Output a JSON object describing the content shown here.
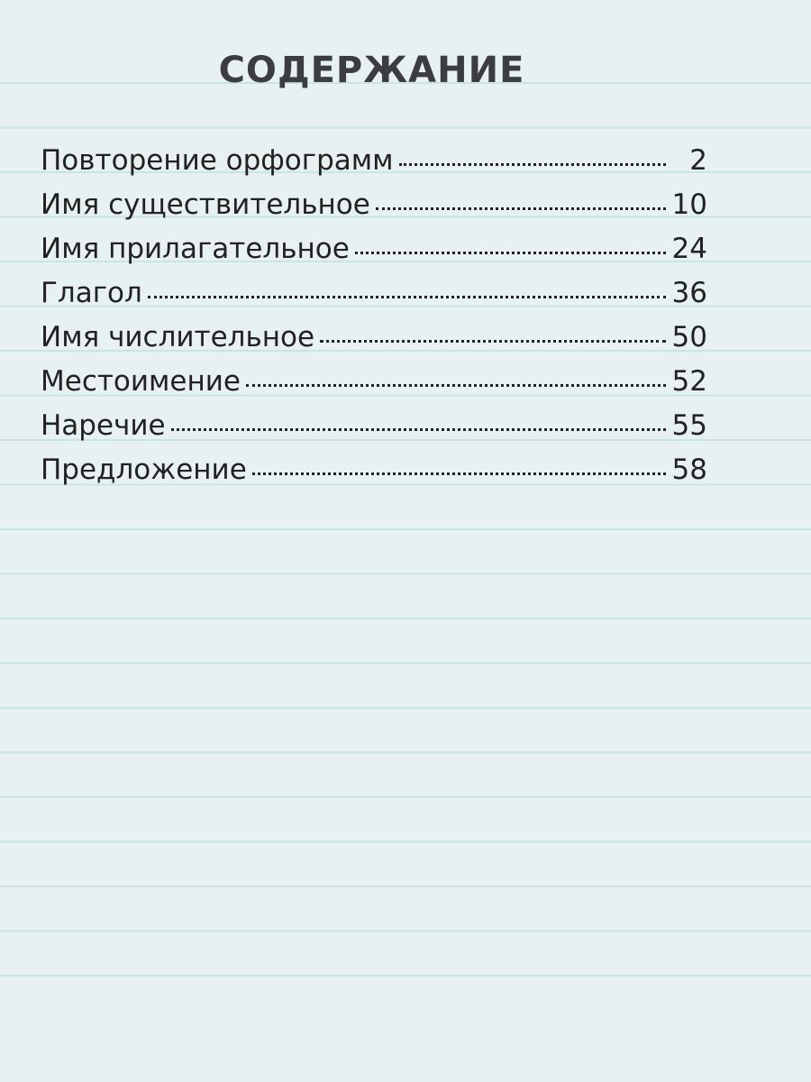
{
  "header": {
    "title": "СОДЕРЖАНИЕ"
  },
  "toc": {
    "entries": [
      {
        "label": "Повторение орфограмм",
        "page": "2"
      },
      {
        "label": "Имя существительное",
        "page": "10"
      },
      {
        "label": "Имя прилагательное",
        "page": "24"
      },
      {
        "label": "Глагол",
        "page": "36"
      },
      {
        "label": "Имя числительное",
        "page": "50"
      },
      {
        "label": "Местоимение",
        "page": "52"
      },
      {
        "label": "Наречие",
        "page": "55"
      },
      {
        "label": "Предложение",
        "page": "58"
      }
    ]
  }
}
